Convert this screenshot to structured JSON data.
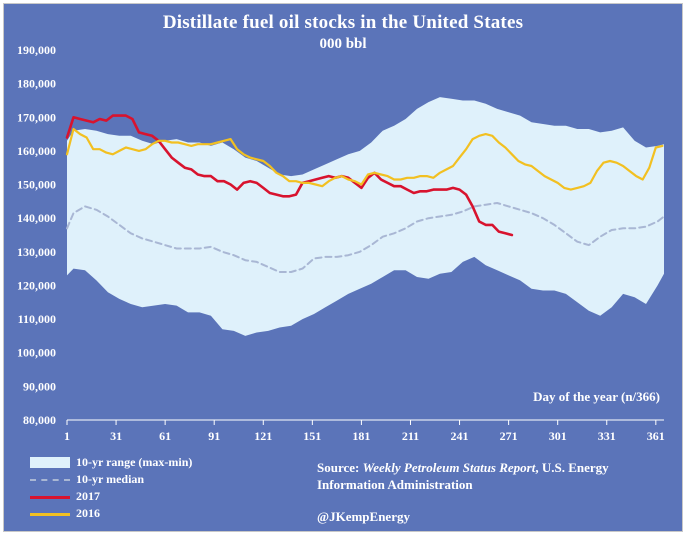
{
  "chart_data": {
    "type": "area",
    "title": "Distillate fuel oil stocks in the United States",
    "subtitle": "000 bbl",
    "xlabel": "Day of the year (n/366)",
    "ylabel": "",
    "xlim": [
      1,
      366
    ],
    "ylim": [
      80000,
      190000
    ],
    "y_ticks": [
      "80,000",
      "90,000",
      "100,000",
      "110,000",
      "120,000",
      "130,000",
      "140,000",
      "150,000",
      "160,000",
      "170,000",
      "180,000",
      "190,000"
    ],
    "x_ticks": [
      "1",
      "31",
      "61",
      "91",
      "121",
      "151",
      "181",
      "211",
      "241",
      "271",
      "301",
      "331",
      "361"
    ],
    "grid": false,
    "legend_position": "bottom-left",
    "colors": {
      "background": "#5b74b9",
      "range_fill": "#dff1fb",
      "median": "#a9b7d4",
      "y2017": "#d8132e",
      "y2016": "#f2c021"
    },
    "series": [
      {
        "name": "10-yr range (max-min)",
        "kind": "band",
        "x": [
          1,
          5,
          12,
          19,
          26,
          33,
          40,
          47,
          54,
          61,
          68,
          75,
          82,
          89,
          96,
          103,
          110,
          117,
          124,
          131,
          138,
          145,
          152,
          159,
          166,
          173,
          180,
          187,
          194,
          201,
          208,
          215,
          222,
          229,
          236,
          243,
          250,
          257,
          264,
          271,
          278,
          285,
          292,
          299,
          306,
          313,
          320,
          327,
          334,
          341,
          348,
          355,
          362,
          366
        ],
        "upper": [
          163000,
          166000,
          166500,
          166000,
          165000,
          164500,
          164500,
          163000,
          162000,
          163000,
          163500,
          162500,
          162500,
          161500,
          162500,
          160500,
          158000,
          157000,
          155000,
          153000,
          152500,
          153000,
          154500,
          156000,
          157500,
          159000,
          160000,
          162500,
          166000,
          167500,
          169500,
          172500,
          174500,
          176000,
          175500,
          175000,
          175000,
          174000,
          172500,
          171500,
          170500,
          168500,
          168000,
          167500,
          167500,
          166500,
          166500,
          165500,
          166000,
          167000,
          163000,
          161000,
          161500,
          162000
        ],
        "lower": [
          123000,
          125000,
          124500,
          121500,
          118000,
          116000,
          114500,
          113500,
          114000,
          114500,
          114000,
          112000,
          112000,
          111000,
          107000,
          106500,
          105000,
          106000,
          106500,
          107500,
          108000,
          110000,
          111500,
          113500,
          115500,
          117500,
          119000,
          120500,
          122500,
          124500,
          124500,
          122500,
          122000,
          123500,
          124000,
          127000,
          128500,
          126000,
          124500,
          123000,
          121500,
          119000,
          118500,
          118500,
          117500,
          115000,
          112500,
          111000,
          113500,
          117500,
          116500,
          114500,
          120000,
          123500
        ]
      },
      {
        "name": "10-yr median",
        "kind": "line",
        "x": [
          1,
          5,
          12,
          19,
          26,
          33,
          40,
          47,
          54,
          61,
          68,
          75,
          82,
          89,
          96,
          103,
          110,
          117,
          124,
          131,
          138,
          145,
          152,
          159,
          166,
          173,
          180,
          187,
          194,
          201,
          208,
          215,
          222,
          229,
          236,
          243,
          250,
          257,
          264,
          271,
          278,
          285,
          292,
          299,
          306,
          313,
          320,
          327,
          334,
          341,
          348,
          355,
          362,
          366
        ],
        "values": [
          137000,
          141500,
          143500,
          142500,
          140500,
          138000,
          135500,
          134000,
          133000,
          132000,
          131000,
          131000,
          131000,
          131500,
          130000,
          129000,
          127500,
          127000,
          125500,
          124000,
          124000,
          125000,
          128000,
          128500,
          128500,
          129000,
          130000,
          132000,
          134500,
          135500,
          137000,
          139000,
          140000,
          140500,
          141000,
          142000,
          143500,
          144000,
          144500,
          143500,
          142500,
          141500,
          140000,
          138000,
          135500,
          133000,
          132000,
          134500,
          136500,
          137000,
          137000,
          137500,
          139000,
          140500
        ]
      },
      {
        "name": "2017",
        "kind": "line",
        "x": [
          1,
          5,
          9,
          13,
          17,
          21,
          25,
          29,
          33,
          37,
          41,
          45,
          49,
          53,
          57,
          61,
          65,
          69,
          73,
          77,
          81,
          85,
          89,
          93,
          97,
          101,
          105,
          109,
          113,
          117,
          121,
          125,
          129,
          133,
          137,
          141,
          145,
          149,
          153,
          157,
          161,
          165,
          169,
          173,
          177,
          181,
          185,
          189,
          193,
          197,
          201,
          205,
          209,
          213,
          217,
          221,
          225,
          229,
          233,
          237,
          241,
          245,
          249,
          253,
          257,
          261,
          265,
          269,
          273
        ],
        "values": [
          164000,
          170000,
          169500,
          169000,
          168500,
          169500,
          169000,
          170500,
          170500,
          170500,
          169500,
          165500,
          165000,
          164500,
          163000,
          160500,
          158000,
          156500,
          155000,
          154500,
          153000,
          152500,
          152500,
          151000,
          151000,
          150000,
          148500,
          150500,
          151000,
          150500,
          149000,
          147500,
          147000,
          146500,
          146500,
          147000,
          150500,
          151000,
          151500,
          152000,
          152500,
          152000,
          152500,
          152000,
          150500,
          149000,
          152000,
          153500,
          151500,
          150500,
          149500,
          149500,
          148500,
          147500,
          148000,
          148000,
          148500,
          148500,
          148500,
          149000,
          148500,
          147000,
          143500,
          139000,
          138000,
          138000,
          136000,
          135500,
          135000
        ]
      },
      {
        "name": "2016",
        "kind": "line",
        "x": [
          1,
          5,
          9,
          13,
          17,
          21,
          25,
          29,
          33,
          37,
          41,
          45,
          49,
          53,
          57,
          61,
          65,
          69,
          73,
          77,
          81,
          85,
          89,
          93,
          97,
          101,
          105,
          109,
          113,
          117,
          121,
          125,
          129,
          133,
          137,
          141,
          145,
          149,
          153,
          157,
          161,
          165,
          169,
          173,
          177,
          181,
          185,
          189,
          193,
          197,
          201,
          205,
          209,
          213,
          217,
          221,
          225,
          229,
          233,
          237,
          241,
          245,
          249,
          253,
          257,
          261,
          265,
          269,
          273,
          277,
          281,
          285,
          289,
          293,
          297,
          301,
          305,
          309,
          313,
          317,
          321,
          325,
          329,
          333,
          337,
          341,
          345,
          349,
          353,
          357,
          361,
          365
        ],
        "values": [
          159000,
          166500,
          165000,
          164000,
          160500,
          160500,
          159500,
          159000,
          160000,
          161000,
          160500,
          160000,
          160500,
          162000,
          163000,
          163000,
          162500,
          162500,
          162000,
          161500,
          162000,
          162000,
          162000,
          162500,
          163000,
          163500,
          160500,
          159000,
          158000,
          157500,
          157000,
          155500,
          153500,
          152500,
          151000,
          151000,
          150500,
          150500,
          150000,
          149500,
          151000,
          152000,
          152500,
          151500,
          151000,
          150000,
          153000,
          153500,
          153000,
          152500,
          151500,
          151500,
          152000,
          152000,
          152500,
          152500,
          152000,
          153500,
          154500,
          155500,
          158000,
          160500,
          163500,
          164500,
          165000,
          164500,
          162500,
          161000,
          159000,
          157000,
          156000,
          155500,
          154000,
          152500,
          151500,
          150500,
          149000,
          148500,
          149000,
          149500,
          150500,
          154000,
          156500,
          157000,
          156500,
          155500,
          154000,
          152500,
          151500,
          155000,
          161000,
          161500
        ]
      }
    ]
  },
  "legend": [
    {
      "key": "range",
      "label": "10-yr range (max-min)"
    },
    {
      "key": "median",
      "label": "10-yr median"
    },
    {
      "key": "y2017",
      "label": "2017"
    },
    {
      "key": "y2016",
      "label": "2016"
    }
  ],
  "source": {
    "prefix": "Source: ",
    "report": "Weekly Petroleum Status Report",
    "suffix": ", U.S. Energy Information Administration"
  },
  "credit": "@JKempEnergy"
}
